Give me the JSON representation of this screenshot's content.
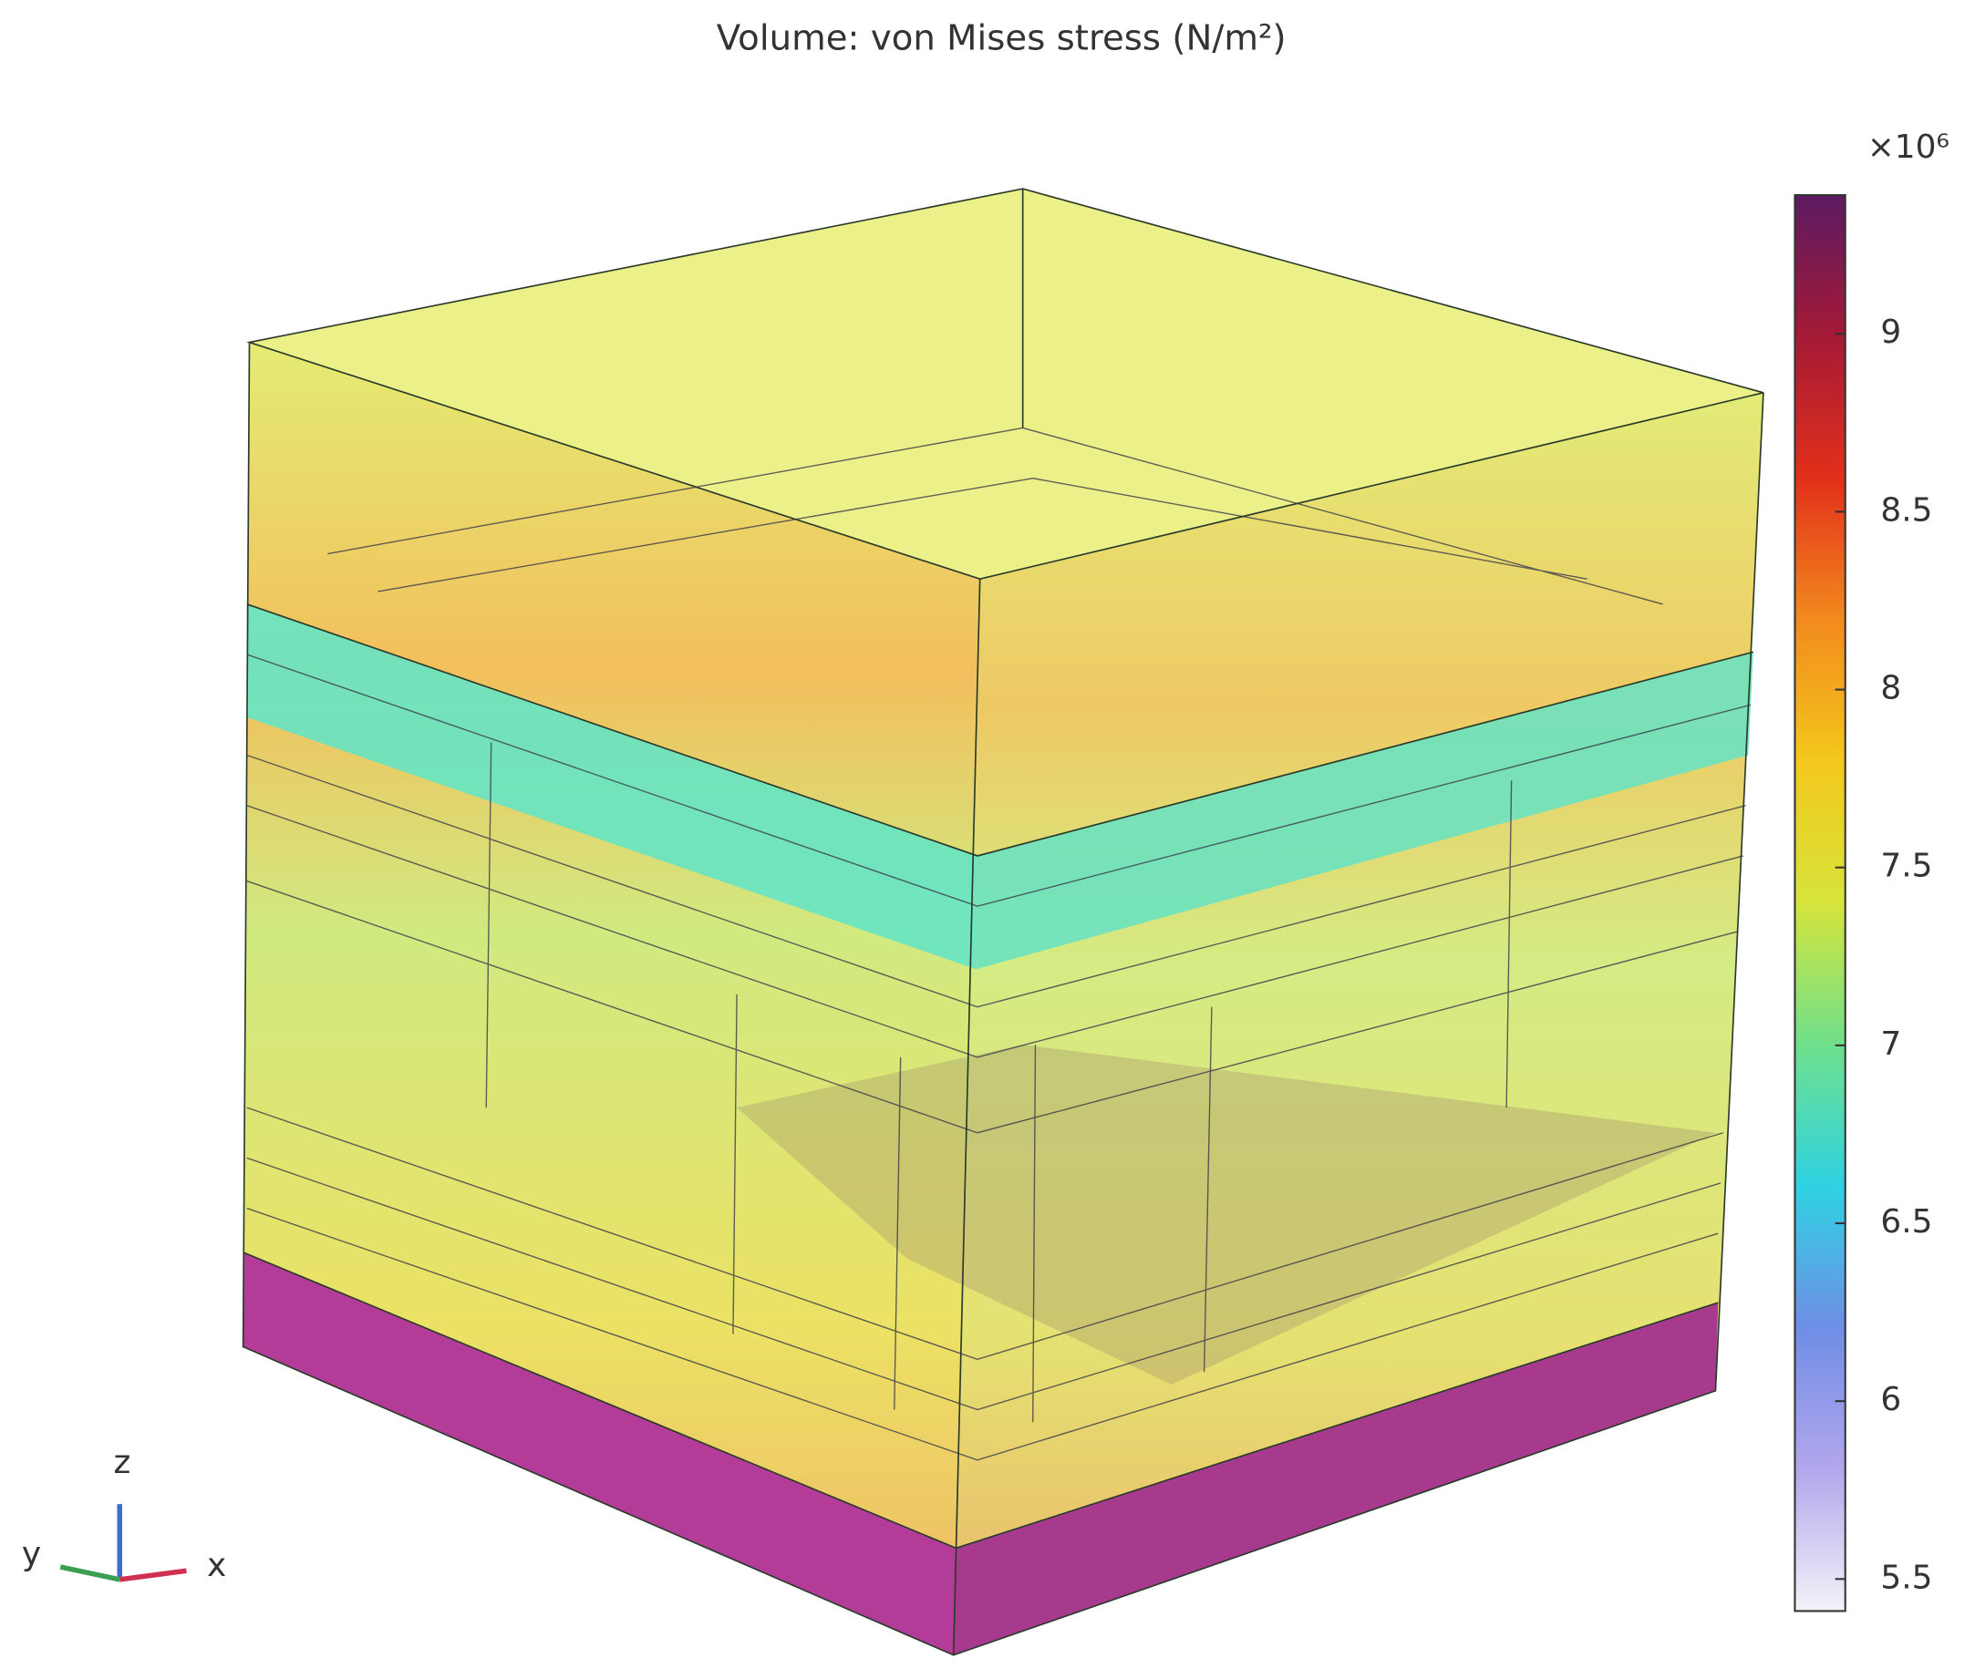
{
  "chart_data": {
    "type": "volume",
    "title": "Volume: von Mises stress (N/m²)",
    "colorbar_multiplier": "×10⁶",
    "ylim": [
      5.41,
      9.39
    ],
    "yticks": [
      5.5,
      6,
      6.5,
      7,
      7.5,
      8,
      8.5,
      9
    ],
    "colormap": [
      "#f4f2f8",
      "#b3a6ec",
      "#6f8ee6",
      "#2fd2e2",
      "#6fe08c",
      "#d6e43c",
      "#f4c81c",
      "#f28a1e",
      "#e2301a",
      "#a51a36",
      "#5c1a62"
    ],
    "axis_labels": {
      "x": "x",
      "y": "y",
      "z": "z"
    }
  }
}
